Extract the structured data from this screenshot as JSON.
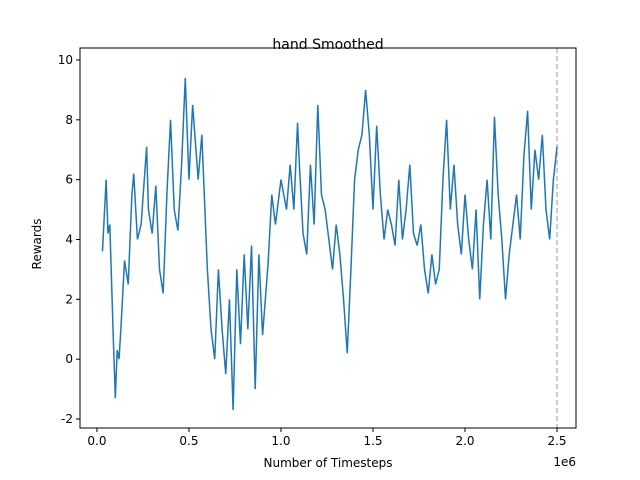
{
  "chart_data": {
    "type": "line",
    "title": "hand Smoothed",
    "xlabel": "Number of Timesteps",
    "ylabel": "Rewards",
    "x_offset_label": "1e6",
    "x": [
      30000,
      40000,
      50000,
      60000,
      70000,
      80000,
      90000,
      100000,
      110000,
      120000,
      130000,
      150000,
      170000,
      190000,
      200000,
      220000,
      240000,
      270000,
      280000,
      300000,
      320000,
      340000,
      360000,
      380000,
      400000,
      420000,
      440000,
      460000,
      480000,
      500000,
      520000,
      550000,
      570000,
      600000,
      620000,
      640000,
      660000,
      680000,
      700000,
      720000,
      740000,
      760000,
      780000,
      800000,
      820000,
      840000,
      860000,
      880000,
      900000,
      930000,
      950000,
      970000,
      1000000,
      1030000,
      1050000,
      1070000,
      1090000,
      1100000,
      1120000,
      1140000,
      1160000,
      1180000,
      1200000,
      1220000,
      1240000,
      1260000,
      1280000,
      1300000,
      1320000,
      1340000,
      1360000,
      1380000,
      1400000,
      1420000,
      1440000,
      1460000,
      1480000,
      1500000,
      1520000,
      1540000,
      1560000,
      1580000,
      1600000,
      1620000,
      1640000,
      1660000,
      1680000,
      1700000,
      1720000,
      1740000,
      1760000,
      1780000,
      1800000,
      1820000,
      1840000,
      1860000,
      1880000,
      1900000,
      1920000,
      1940000,
      1960000,
      1980000,
      2000000,
      2020000,
      2040000,
      2060000,
      2080000,
      2100000,
      2120000,
      2140000,
      2160000,
      2180000,
      2200000,
      2220000,
      2240000,
      2260000,
      2280000,
      2300000,
      2320000,
      2340000,
      2360000,
      2380000,
      2400000,
      2420000,
      2440000,
      2460000,
      2480000,
      2500000
    ],
    "series": [
      {
        "name": "hand",
        "color": "#1f77b4",
        "values": [
          3.6,
          4.8,
          6.0,
          4.2,
          4.5,
          2.5,
          0.5,
          -1.3,
          0.3,
          0.0,
          1.0,
          3.3,
          2.5,
          5.5,
          6.2,
          4.0,
          4.5,
          7.1,
          5.0,
          4.2,
          5.8,
          3.0,
          2.2,
          5.5,
          8.0,
          5.0,
          4.3,
          6.5,
          9.4,
          6.0,
          8.5,
          6.0,
          7.5,
          3.0,
          1.0,
          0.0,
          3.0,
          1.0,
          -0.5,
          2.0,
          -1.7,
          3.0,
          0.5,
          3.5,
          1.0,
          3.8,
          -1.0,
          3.5,
          0.8,
          3.2,
          5.5,
          4.5,
          6.0,
          5.0,
          6.5,
          5.0,
          7.9,
          6.5,
          4.2,
          3.5,
          6.5,
          4.5,
          8.5,
          5.5,
          5.0,
          4.0,
          3.0,
          4.5,
          3.5,
          2.0,
          0.2,
          3.0,
          6.0,
          7.0,
          7.5,
          9.0,
          7.5,
          5.0,
          7.8,
          5.5,
          4.0,
          5.0,
          4.5,
          3.8,
          6.0,
          4.0,
          5.0,
          6.5,
          4.2,
          3.8,
          4.5,
          3.0,
          2.2,
          3.5,
          2.5,
          3.0,
          6.0,
          8.0,
          5.0,
          6.5,
          4.5,
          3.5,
          5.5,
          4.0,
          3.0,
          5.0,
          2.0,
          4.5,
          6.0,
          4.0,
          8.1,
          5.5,
          4.0,
          2.0,
          3.5,
          4.5,
          5.5,
          4.0,
          6.8,
          8.3,
          5.0,
          7.0,
          6.0,
          7.5,
          5.0,
          4.0,
          6.0,
          7.1
        ]
      }
    ],
    "xlim": [
      -92000,
      2603000
    ],
    "ylim": [
      -2.3,
      10.4
    ],
    "xticks": [
      {
        "value": 0,
        "label": "0.0"
      },
      {
        "value": 500000,
        "label": "0.5"
      },
      {
        "value": 1000000,
        "label": "1.0"
      },
      {
        "value": 1500000,
        "label": "1.5"
      },
      {
        "value": 2000000,
        "label": "2.0"
      },
      {
        "value": 2500000,
        "label": "2.5"
      }
    ],
    "yticks": [
      -2,
      0,
      2,
      4,
      6,
      8,
      10
    ],
    "reference_line": {
      "x": 2500000,
      "color": "#bbbbbb"
    }
  }
}
